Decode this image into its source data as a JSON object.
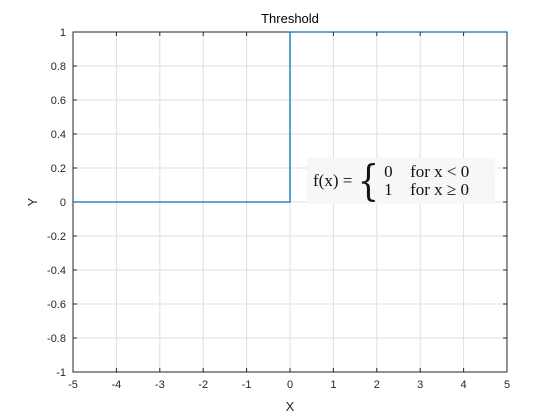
{
  "chart_data": {
    "type": "line",
    "title": "Threshold",
    "xlabel": "X",
    "ylabel": "Y",
    "xlim": [
      -5,
      5
    ],
    "ylim": [
      -1,
      1
    ],
    "grid": true,
    "x_ticks": [
      -5,
      -4,
      -3,
      -2,
      -1,
      0,
      1,
      2,
      3,
      4,
      5
    ],
    "x_tick_labels": [
      "-5",
      "-4",
      "-3",
      "-2",
      "-1",
      "0",
      "1",
      "2",
      "3",
      "4",
      "5"
    ],
    "y_ticks": [
      -1,
      -0.8,
      -0.6,
      -0.4,
      -0.2,
      0,
      0.2,
      0.4,
      0.6,
      0.8,
      1
    ],
    "y_tick_labels": [
      "-1",
      "-0.8",
      "-0.6",
      "-0.4",
      "-0.2",
      "0",
      "0.2",
      "0.4",
      "0.6",
      "0.8",
      "1"
    ],
    "series": [
      {
        "x": [
          -5,
          0,
          0,
          5
        ],
        "y": [
          0,
          0,
          1,
          1
        ],
        "color": "#0072bd"
      }
    ],
    "annotation": {
      "lhs": "f(x) =",
      "cases": [
        {
          "value": "0",
          "condition": "for x < 0"
        },
        {
          "value": "1",
          "condition": "for x ≥ 0"
        }
      ]
    }
  }
}
